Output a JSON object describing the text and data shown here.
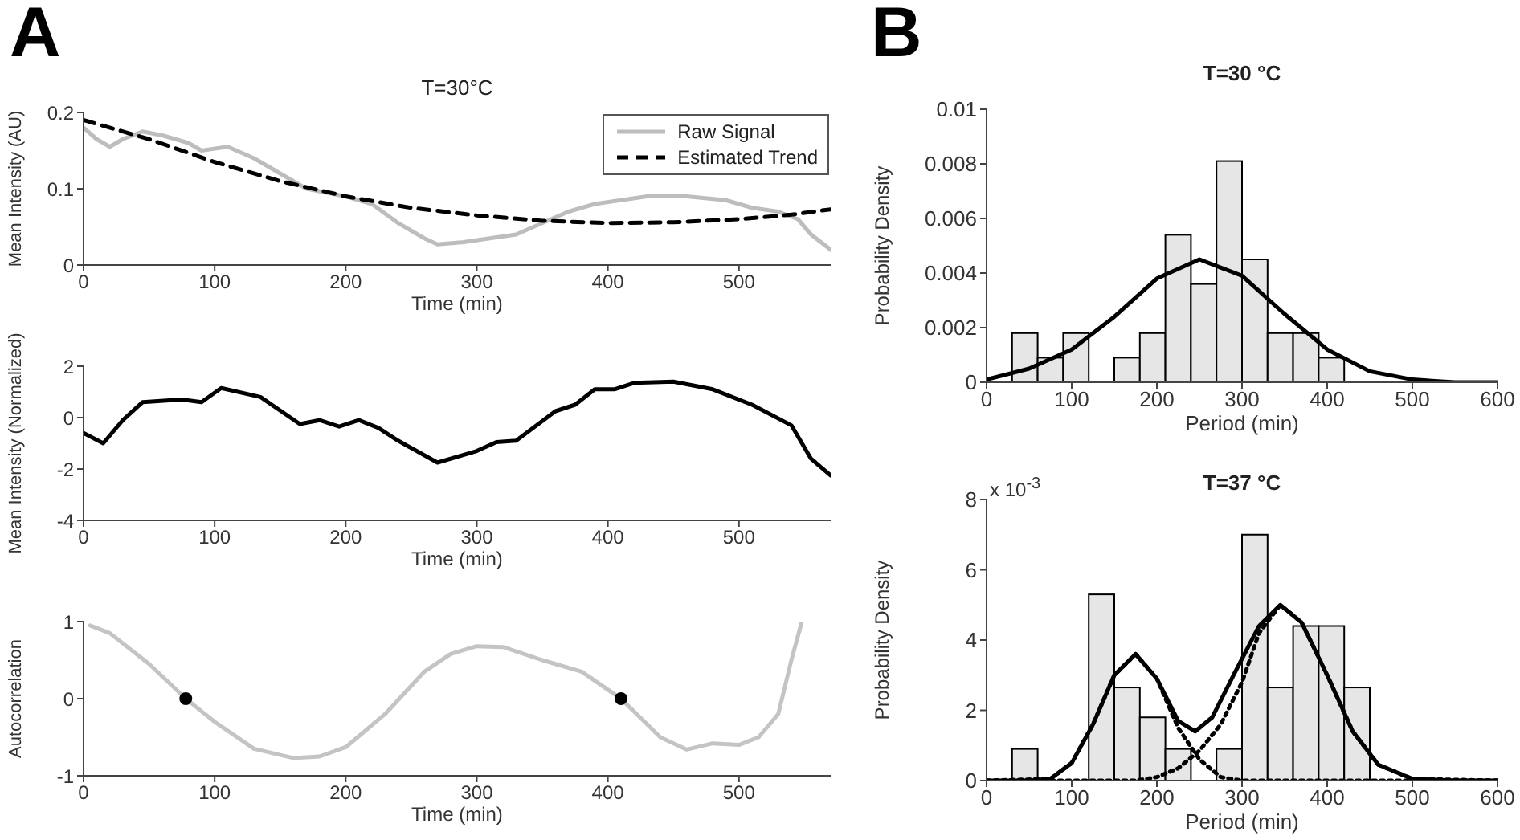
{
  "chart_data": [
    {
      "type": "line",
      "title": "T=30°C",
      "xlabel": "Time (min)",
      "ylabel": "Mean Intensity (AU)",
      "annotations": [
        "A"
      ],
      "xlim": [
        0,
        570
      ],
      "xticks": [
        0,
        100,
        200,
        300,
        400,
        500
      ],
      "ylim": [
        0,
        0.2
      ],
      "yticks": [
        0,
        0.1,
        0.2
      ],
      "legend": "top right",
      "series": [
        {
          "name": "Raw Signal",
          "color": "#bdbdbd",
          "line_style": "solid",
          "x": [
            0,
            10,
            20,
            30,
            45,
            60,
            80,
            90,
            110,
            130,
            150,
            170,
            200,
            220,
            240,
            260,
            270,
            290,
            310,
            330,
            350,
            370,
            390,
            410,
            430,
            460,
            490,
            510,
            530,
            545,
            555,
            570
          ],
          "values": [
            0.18,
            0.165,
            0.155,
            0.165,
            0.175,
            0.17,
            0.16,
            0.15,
            0.155,
            0.14,
            0.12,
            0.1,
            0.09,
            0.08,
            0.055,
            0.035,
            0.027,
            0.03,
            0.035,
            0.04,
            0.055,
            0.07,
            0.08,
            0.085,
            0.09,
            0.09,
            0.085,
            0.075,
            0.07,
            0.06,
            0.04,
            0.02
          ]
        },
        {
          "name": "Estimated Trend",
          "color": "#000000",
          "line_style": "dashed",
          "x": [
            0,
            50,
            100,
            150,
            200,
            250,
            300,
            350,
            400,
            450,
            500,
            540,
            570
          ],
          "values": [
            0.19,
            0.165,
            0.135,
            0.11,
            0.09,
            0.075,
            0.065,
            0.058,
            0.055,
            0.056,
            0.06,
            0.066,
            0.073
          ]
        }
      ]
    },
    {
      "type": "line",
      "xlabel": "Time (min)",
      "ylabel": "Mean Intensity (Normalized)",
      "xlim": [
        0,
        570
      ],
      "xticks": [
        0,
        100,
        200,
        300,
        400,
        500
      ],
      "ylim": [
        -4,
        2
      ],
      "yticks": [
        -4,
        -2,
        0,
        2
      ],
      "series": [
        {
          "color": "#000000",
          "x": [
            0,
            15,
            30,
            45,
            75,
            90,
            105,
            135,
            165,
            180,
            195,
            210,
            225,
            240,
            270,
            300,
            315,
            330,
            360,
            375,
            390,
            405,
            420,
            450,
            480,
            510,
            540,
            555,
            570
          ],
          "values": [
            -0.6,
            -1.0,
            -0.1,
            0.6,
            0.7,
            0.6,
            1.15,
            0.8,
            -0.25,
            -0.1,
            -0.35,
            -0.1,
            -0.4,
            -0.9,
            -1.75,
            -1.3,
            -0.95,
            -0.9,
            0.25,
            0.5,
            1.1,
            1.1,
            1.35,
            1.4,
            1.1,
            0.5,
            -0.3,
            -1.6,
            -2.25
          ]
        }
      ]
    },
    {
      "type": "line",
      "xlabel": "Time (min)",
      "ylabel": "Autocorrelation",
      "xlim": [
        0,
        570
      ],
      "xticks": [
        0,
        100,
        200,
        300,
        400,
        500
      ],
      "ylim": [
        -1,
        1
      ],
      "yticks": [
        -1,
        0,
        1
      ],
      "series": [
        {
          "color": "#c4c4c4",
          "x": [
            5,
            20,
            50,
            78,
            100,
            130,
            160,
            180,
            200,
            230,
            260,
            280,
            300,
            320,
            350,
            380,
            410,
            440,
            460,
            480,
            500,
            515,
            530,
            540,
            548
          ],
          "values": [
            0.95,
            0.85,
            0.45,
            0,
            -0.3,
            -0.65,
            -0.77,
            -0.75,
            -0.63,
            -0.2,
            0.35,
            0.58,
            0.68,
            0.67,
            0.5,
            0.35,
            0,
            -0.5,
            -0.66,
            -0.58,
            -0.6,
            -0.5,
            -0.2,
            0.5,
            1.0
          ]
        },
        {
          "type": "scatter",
          "color": "#000000",
          "marker": "circle",
          "x": [
            78,
            410
          ],
          "values": [
            0,
            0
          ]
        }
      ]
    },
    {
      "type": "histogram",
      "title": "T=30 °C",
      "xlabel": "Period (min)",
      "ylabel": "Probability Density",
      "annotations": [
        "B"
      ],
      "color": "#e6e6e6",
      "xlim": [
        0,
        600
      ],
      "xticks": [
        0,
        100,
        200,
        300,
        400,
        500,
        600
      ],
      "ylim": [
        0,
        0.01
      ],
      "yticks": [
        0,
        0.002,
        0.004,
        0.006,
        0.008,
        0.01
      ],
      "bins": [
        30,
        60,
        90,
        120,
        150,
        180,
        210,
        240,
        270,
        300,
        330,
        360,
        390,
        420
      ],
      "values": [
        0.0018,
        0.0009,
        0.0018,
        0,
        0.0009,
        0.0018,
        0.0054,
        0.0036,
        0.0081,
        0.0045,
        0.0018,
        0.0018,
        0.0009
      ],
      "series": [
        {
          "type": "line",
          "color": "#000000",
          "line_style": "solid",
          "x": [
            0,
            50,
            100,
            150,
            200,
            250,
            300,
            350,
            400,
            450,
            500,
            550,
            600
          ],
          "values": [
            0.0001,
            0.0005,
            0.0012,
            0.0024,
            0.0038,
            0.0045,
            0.0039,
            0.0025,
            0.0012,
            0.0004,
            0.0001,
            0,
            0
          ]
        }
      ]
    },
    {
      "type": "histogram",
      "title": "T=37 °C",
      "xlabel": "Period (min)",
      "ylabel": "Probability Density",
      "annotations": [
        "x 10$^{-3}$"
      ],
      "color": "#e6e6e6",
      "xlim": [
        0,
        600
      ],
      "xticks": [
        0,
        100,
        200,
        300,
        400,
        500,
        600
      ],
      "ylim": [
        0,
        8
      ],
      "yticks": [
        0,
        2,
        4,
        6,
        8
      ],
      "bins": [
        30,
        60,
        90,
        120,
        150,
        180,
        210,
        240,
        270,
        300,
        330,
        360,
        390,
        420,
        450
      ],
      "values": [
        0.9,
        0,
        0,
        5.3,
        2.65,
        1.8,
        0.9,
        0,
        0.9,
        7.0,
        2.65,
        4.4,
        4.4,
        2.65
      ],
      "series": [
        {
          "type": "line",
          "color": "#000000",
          "line_style": "dotted",
          "x": [
            0,
            75,
            100,
            125,
            150,
            175,
            200,
            225,
            250,
            275,
            300,
            600
          ],
          "values": [
            0,
            0.05,
            0.5,
            1.6,
            3.0,
            3.6,
            2.9,
            1.5,
            0.6,
            0.1,
            0,
            0
          ]
        },
        {
          "type": "line",
          "color": "#000000",
          "line_style": "dotted",
          "x": [
            0,
            175,
            200,
            225,
            250,
            275,
            300,
            320,
            345,
            370,
            400,
            430,
            460,
            500,
            600
          ],
          "values": [
            0,
            0,
            0.1,
            0.35,
            0.85,
            1.6,
            2.8,
            4.2,
            5.0,
            4.5,
            3.0,
            1.4,
            0.45,
            0.05,
            0
          ]
        },
        {
          "type": "line",
          "color": "#000000",
          "line_style": "solid",
          "x": [
            0,
            50,
            75,
            100,
            125,
            150,
            175,
            200,
            225,
            245,
            265,
            290,
            320,
            345,
            370,
            400,
            430,
            460,
            500,
            550,
            600
          ],
          "values": [
            0,
            0,
            0.05,
            0.5,
            1.6,
            3.0,
            3.6,
            2.9,
            1.7,
            1.4,
            1.8,
            3.0,
            4.4,
            5.0,
            4.5,
            3.0,
            1.4,
            0.45,
            0.05,
            0,
            0
          ]
        }
      ]
    }
  ]
}
